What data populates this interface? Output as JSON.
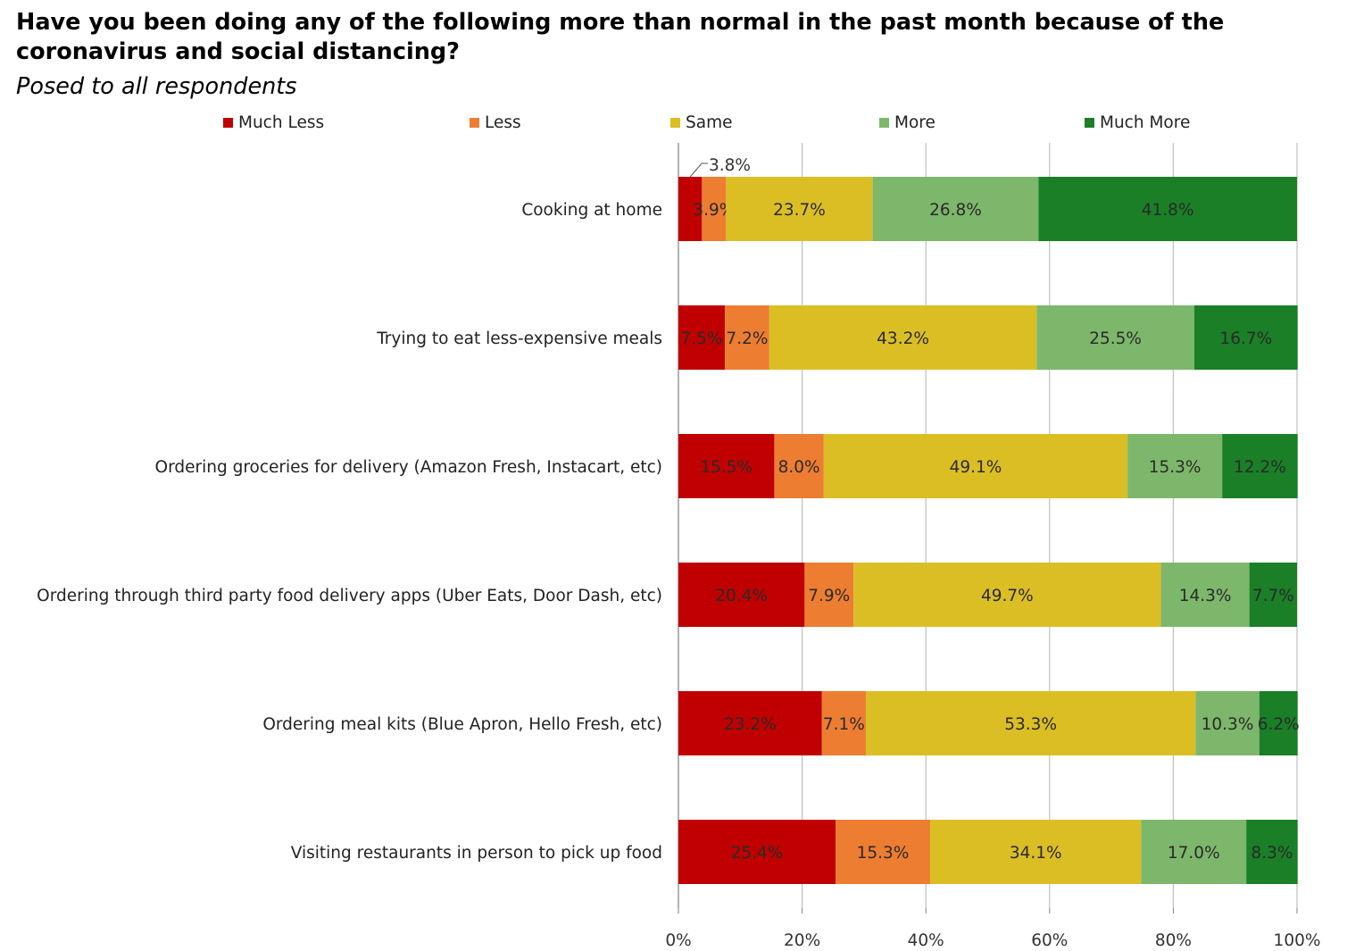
{
  "title": "Have you been doing any of the following more than normal in the past month because of the coronavirus and social distancing?",
  "subtitle": "Posed to all respondents",
  "chart_data": {
    "type": "bar",
    "orientation": "horizontal",
    "stacked": "100%",
    "categories": [
      "Cooking at home",
      "Trying to eat less-expensive meals",
      "Ordering groceries for delivery (Amazon Fresh, Instacart, etc)",
      "Ordering through third party food delivery apps (Uber Eats, Door Dash, etc)",
      "Ordering meal kits (Blue Apron, Hello Fresh, etc)",
      "Visiting restaurants in person to pick up food"
    ],
    "series": [
      {
        "name": "Much Less",
        "color": "#c00000",
        "values": [
          3.8,
          7.5,
          15.5,
          20.4,
          23.2,
          25.4
        ],
        "labels": [
          "3.8%",
          "7.5%",
          "15.5%",
          "20.4%",
          "23.2%",
          "25.4%"
        ]
      },
      {
        "name": "Less",
        "color": "#ed7d31",
        "values": [
          3.9,
          7.2,
          8.0,
          7.9,
          7.1,
          15.3
        ],
        "labels": [
          "3.9%",
          "7.2%",
          "8.0%",
          "7.9%",
          "7.1%",
          "15.3%"
        ]
      },
      {
        "name": "Same",
        "color": "#dbbe24",
        "values": [
          23.7,
          43.2,
          49.1,
          49.7,
          53.3,
          34.1
        ],
        "labels": [
          "23.7%",
          "43.2%",
          "49.1%",
          "49.7%",
          "53.3%",
          "34.1%"
        ]
      },
      {
        "name": "More",
        "color": "#7db76b",
        "values": [
          26.8,
          25.5,
          15.3,
          14.3,
          10.3,
          17.0
        ],
        "labels": [
          "26.8%",
          "25.5%",
          "15.3%",
          "14.3%",
          "10.3%",
          "17.0%"
        ]
      },
      {
        "name": "Much More",
        "color": "#1a7f27",
        "values": [
          41.8,
          16.7,
          12.2,
          7.7,
          6.2,
          8.3
        ],
        "labels": [
          "41.8%",
          "16.7%",
          "12.2%",
          "7.7%",
          "6.2%",
          "8.3%"
        ]
      }
    ],
    "xlim": [
      0,
      100
    ],
    "xticks": [
      "0%",
      "20%",
      "40%",
      "60%",
      "80%",
      "100%"
    ],
    "grid": true,
    "legend": "top"
  }
}
